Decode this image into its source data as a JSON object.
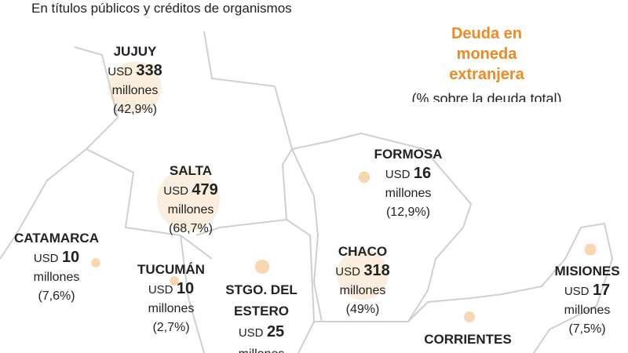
{
  "header": {
    "subtitle": "En títulos públicos y créditos de organismos"
  },
  "legend": {
    "title": "Deuda en moneda extranjera",
    "note": "(% sobre la deuda total)"
  },
  "provinces": [
    {
      "name": "JUJUY",
      "currency": "USD",
      "amount": 338,
      "unit": "millones",
      "share": "(42,9%)"
    },
    {
      "name": "SALTA",
      "currency": "USD",
      "amount": 479,
      "unit": "millones",
      "share": "(68,7%)"
    },
    {
      "name": "FORMOSA",
      "currency": "USD",
      "amount": 16,
      "unit": "millones",
      "share": "(12,9%)"
    },
    {
      "name": "CATAMARCA",
      "currency": "USD",
      "amount": 10,
      "unit": "millones",
      "share": "(7,6%)"
    },
    {
      "name": "TUCUMÁN",
      "currency": "USD",
      "amount": 10,
      "unit": "millones",
      "share": "(2,7%)"
    },
    {
      "name": "STGO. DEL ESTERO",
      "currency": "USD",
      "amount": 25,
      "unit": "millones"
    },
    {
      "name": "CHACO",
      "currency": "USD",
      "amount": 318,
      "unit": "millones",
      "share": "(49%)"
    },
    {
      "name": "MISIONES",
      "currency": "USD",
      "amount": 17,
      "unit": "millones",
      "share": "(7,5%)"
    },
    {
      "name": "CORRIENTES"
    }
  ]
}
